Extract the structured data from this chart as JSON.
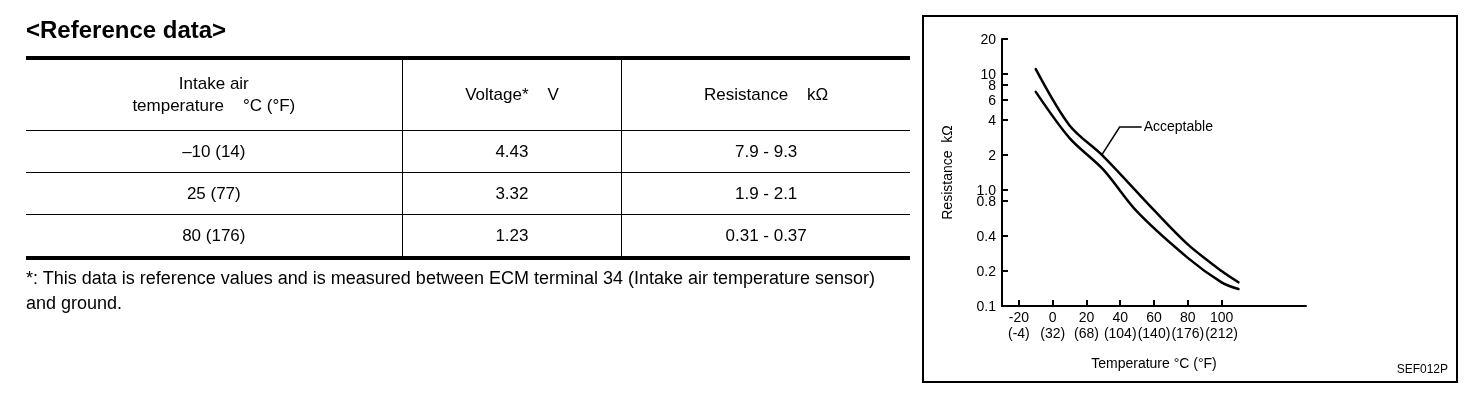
{
  "chart_data": [
    {
      "type": "other",
      "title": "<Reference data>",
      "categories": [
        "Intake air\ntemperature    °C (°F)",
        "Voltage*    V",
        "Resistance    kΩ"
      ],
      "cell_labels": [
        [
          "–10 (14)",
          "4.43",
          "7.9 - 9.3"
        ],
        [
          "25 (77)",
          "3.32",
          "1.9 - 2.1"
        ],
        [
          "80 (176)",
          "1.23",
          "0.31 - 0.37"
        ]
      ],
      "annotations": [
        "*: This data is reference values and is measured between ECM terminal 34 (Intake air temperature sensor) and ground."
      ]
    },
    {
      "type": "line",
      "xlabel": "Temperature °C (°F)",
      "ylabel": "Resistance  kΩ",
      "log": "y",
      "grid": false,
      "marker": "none",
      "line_style": "solid",
      "xlim": [
        -30,
        150
      ],
      "xticks": [
        -20,
        0,
        20,
        40,
        60,
        80,
        100
      ],
      "x2lim": [
        -22,
        302
      ],
      "x2ticks": [
        {
          "value": -4,
          "label": "(-4)"
        },
        {
          "value": 32,
          "label": "(32)"
        },
        {
          "value": 68,
          "label": "(68)"
        },
        {
          "value": 104,
          "label": "(104)"
        },
        {
          "value": 140,
          "label": "(140)"
        },
        {
          "value": 176,
          "label": "(176)"
        },
        {
          "value": 212,
          "label": "(212)"
        }
      ],
      "ylim": [
        0.1,
        20
      ],
      "yticks": [
        {
          "value": 0.1,
          "label": "0.1"
        },
        {
          "value": 0.2,
          "label": "0.2"
        },
        {
          "value": 0.4,
          "label": "0.4"
        },
        {
          "value": 0.8,
          "label": "0.8"
        },
        {
          "value": 1,
          "label": "1.0"
        },
        2,
        4,
        6,
        8,
        10,
        20
      ],
      "series": [
        {
          "color": "#000000",
          "x": [
            -10,
            10,
            30,
            60,
            80,
            100,
            110
          ],
          "values": [
            11,
            3.6,
            1.95,
            0.67,
            0.34,
            0.2,
            0.16
          ]
        },
        {
          "color": "#000000",
          "x": [
            -10,
            10,
            30,
            50,
            80,
            100,
            110
          ],
          "values": [
            7,
            2.8,
            1.5,
            0.65,
            0.26,
            0.16,
            0.14
          ]
        }
      ],
      "annotations": [
        {
          "text": "Acceptable",
          "x": 29,
          "y": 2
        },
        "SEF012P"
      ]
    }
  ]
}
